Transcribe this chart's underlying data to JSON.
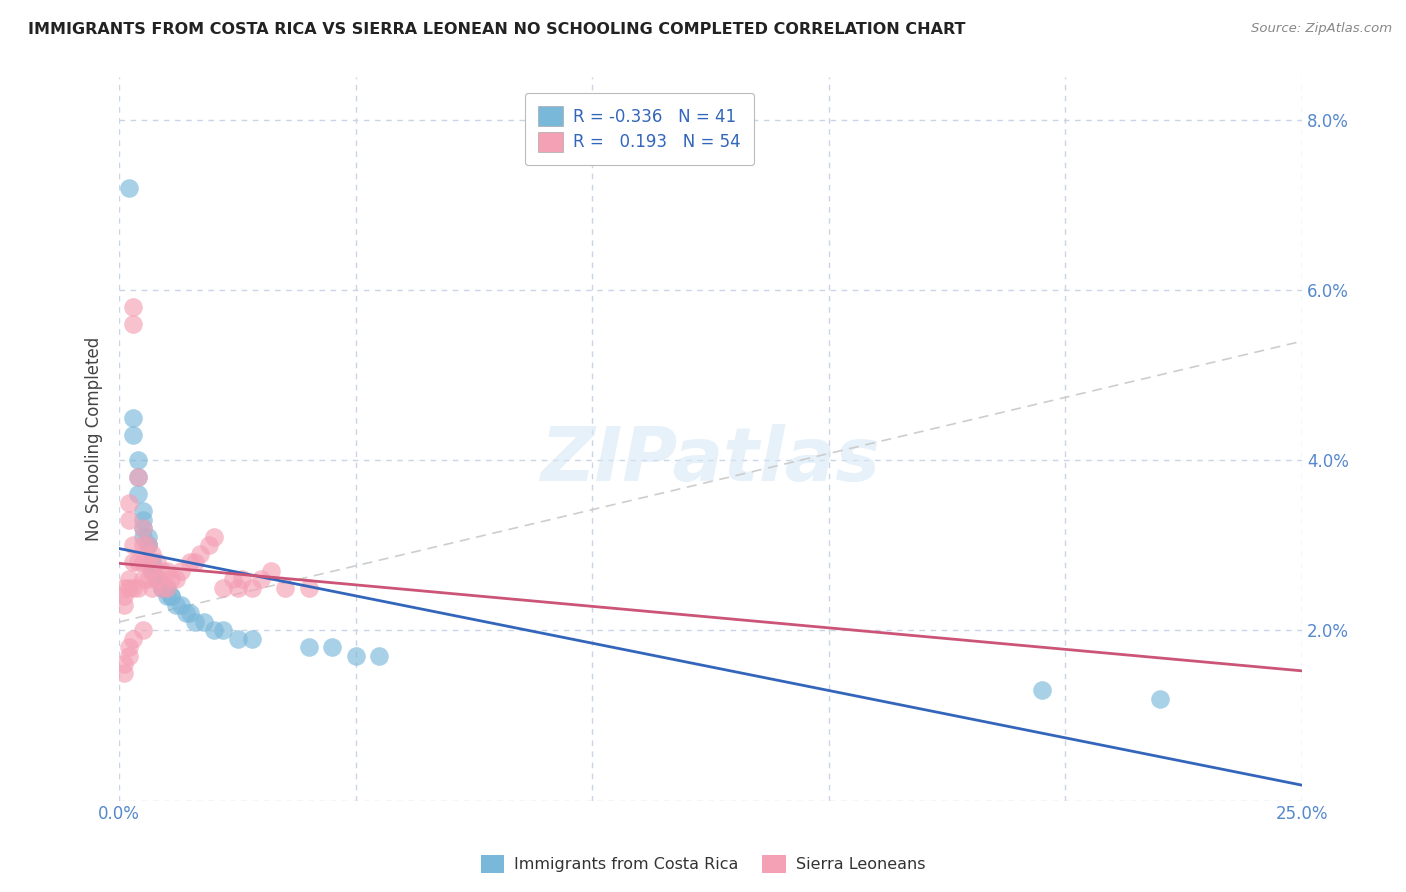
{
  "title": "IMMIGRANTS FROM COSTA RICA VS SIERRA LEONEAN NO SCHOOLING COMPLETED CORRELATION CHART",
  "source": "Source: ZipAtlas.com",
  "ylabel": "No Schooling Completed",
  "xlim": [
    0.0,
    0.25
  ],
  "ylim": [
    0.0,
    0.085
  ],
  "legend1_r": "-0.336",
  "legend1_n": "41",
  "legend2_r": "0.193",
  "legend2_n": "54",
  "color_blue": "#7ab8d9",
  "color_pink": "#f4a0b5",
  "color_blue_line": "#3366bb",
  "color_pink_line": "#cc5577",
  "color_gray_line": "#c8c8c8",
  "watermark": "ZIPatlas",
  "costa_rica_x": [
    0.002,
    0.003,
    0.003,
    0.004,
    0.004,
    0.004,
    0.005,
    0.005,
    0.005,
    0.005,
    0.006,
    0.006,
    0.006,
    0.007,
    0.007,
    0.007,
    0.007,
    0.008,
    0.008,
    0.009,
    0.009,
    0.01,
    0.01,
    0.011,
    0.011,
    0.012,
    0.013,
    0.014,
    0.015,
    0.016,
    0.018,
    0.02,
    0.022,
    0.025,
    0.028,
    0.04,
    0.045,
    0.05,
    0.055,
    0.195,
    0.22
  ],
  "costa_rica_y": [
    0.072,
    0.043,
    0.045,
    0.038,
    0.04,
    0.036,
    0.033,
    0.034,
    0.032,
    0.031,
    0.03,
    0.03,
    0.031,
    0.028,
    0.028,
    0.027,
    0.027,
    0.026,
    0.026,
    0.025,
    0.025,
    0.025,
    0.024,
    0.024,
    0.024,
    0.023,
    0.023,
    0.022,
    0.022,
    0.021,
    0.021,
    0.02,
    0.02,
    0.019,
    0.019,
    0.018,
    0.018,
    0.017,
    0.017,
    0.013,
    0.012
  ],
  "sierra_leone_x": [
    0.001,
    0.001,
    0.001,
    0.002,
    0.002,
    0.002,
    0.002,
    0.003,
    0.003,
    0.003,
    0.003,
    0.003,
    0.004,
    0.004,
    0.004,
    0.005,
    0.005,
    0.005,
    0.005,
    0.006,
    0.006,
    0.006,
    0.007,
    0.007,
    0.007,
    0.008,
    0.008,
    0.009,
    0.009,
    0.01,
    0.01,
    0.011,
    0.012,
    0.013,
    0.015,
    0.016,
    0.017,
    0.019,
    0.02,
    0.022,
    0.024,
    0.025,
    0.026,
    0.028,
    0.03,
    0.032,
    0.035,
    0.04,
    0.005,
    0.003,
    0.002,
    0.002,
    0.001,
    0.001
  ],
  "sierra_leone_y": [
    0.025,
    0.024,
    0.023,
    0.035,
    0.033,
    0.026,
    0.025,
    0.058,
    0.056,
    0.03,
    0.028,
    0.025,
    0.038,
    0.028,
    0.025,
    0.032,
    0.03,
    0.028,
    0.026,
    0.03,
    0.028,
    0.026,
    0.029,
    0.027,
    0.025,
    0.028,
    0.026,
    0.027,
    0.025,
    0.027,
    0.025,
    0.026,
    0.026,
    0.027,
    0.028,
    0.028,
    0.029,
    0.03,
    0.031,
    0.025,
    0.026,
    0.025,
    0.026,
    0.025,
    0.026,
    0.027,
    0.025,
    0.025,
    0.02,
    0.019,
    0.018,
    0.017,
    0.016,
    0.015
  ]
}
